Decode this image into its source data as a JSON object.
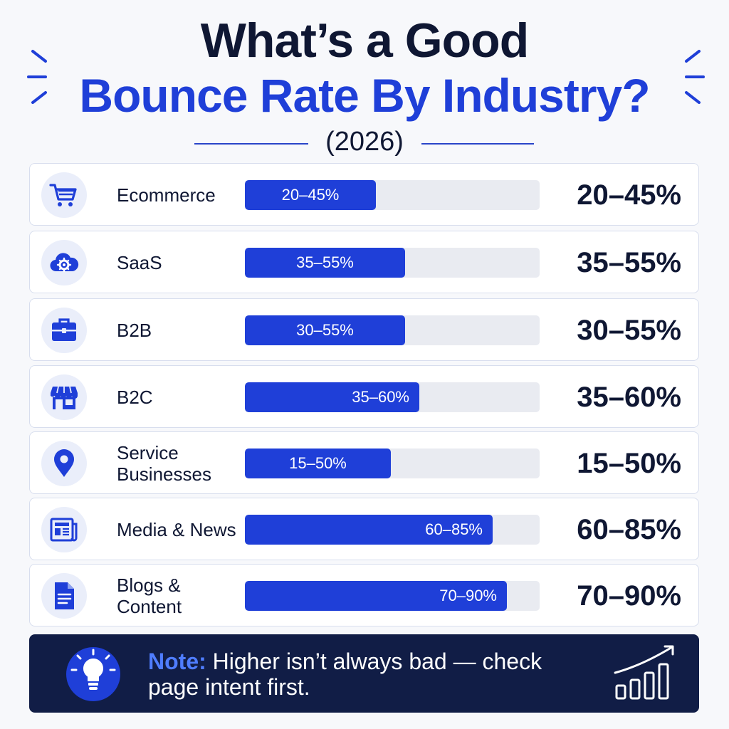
{
  "header": {
    "title_line1": "What’s a Good",
    "title_line2": "Bounce Rate By Industry?",
    "year": "(2026)"
  },
  "colors": {
    "accent": "#1f3fd8",
    "navy": "#0f1733",
    "track": "#e9ebf1",
    "note_bg": "#111d46",
    "note_prefix": "#4f7dff"
  },
  "rows": [
    {
      "label": "Ecommerce",
      "bar_text": "20–45%",
      "value_text": "20–45%",
      "icon": "shopping-cart-icon"
    },
    {
      "label": "SaaS",
      "bar_text": "35–55%",
      "value_text": "35–55%",
      "icon": "cloud-gear-icon"
    },
    {
      "label": "B2B",
      "bar_text": "30–55%",
      "value_text": "30–55%",
      "icon": "briefcase-icon"
    },
    {
      "label": "B2C",
      "bar_text": "35–60%",
      "value_text": "35–60%",
      "icon": "storefront-icon"
    },
    {
      "label": "Service Businesses",
      "bar_text": "15–50%",
      "value_text": "15–50%",
      "icon": "map-pin-icon"
    },
    {
      "label": "Media & News",
      "bar_text": "60–85%",
      "value_text": "60–85%",
      "icon": "newspaper-icon"
    },
    {
      "label": "Blogs & Content",
      "bar_text": "70–90%",
      "value_text": "70–90%",
      "icon": "document-icon"
    }
  ],
  "chart_data": {
    "type": "bar",
    "orientation": "horizontal",
    "categories": [
      "Ecommerce",
      "SaaS",
      "B2B",
      "B2C",
      "Service Businesses",
      "Media & News",
      "Blogs & Content"
    ],
    "series": [
      {
        "low": [
          20,
          35,
          30,
          35,
          15,
          60,
          70
        ],
        "high": [
          45,
          55,
          55,
          60,
          50,
          85,
          90
        ]
      }
    ],
    "xlim": [
      0,
      100
    ],
    "grid": false,
    "legend": "none"
  },
  "note": {
    "prefix": "Note:",
    "text": " Higher isn’t always bad — check page intent first.",
    "icons": [
      "lightbulb-icon",
      "growth-chart-icon"
    ]
  }
}
